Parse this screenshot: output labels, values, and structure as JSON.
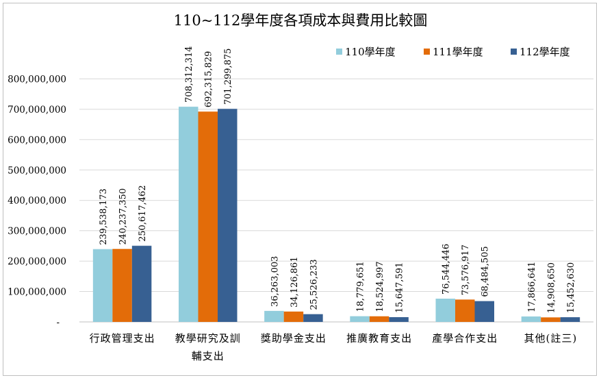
{
  "chart_data": {
    "type": "bar",
    "title": "110~112學年度各項成本與費用比較圖",
    "categories": [
      [
        "行政管理支出"
      ],
      [
        "教學研究及訓",
        "輔支出"
      ],
      [
        "獎助學金支出"
      ],
      [
        "推廣教育支出"
      ],
      [
        "產學合作支出"
      ],
      [
        "其他(註三)"
      ]
    ],
    "series": [
      {
        "name": "110學年度",
        "color": "#92CDDC",
        "values": [
          239538173,
          708312314,
          36263003,
          18779651,
          76544446,
          17866641
        ],
        "labels": [
          "239,538,173",
          "708,312,314",
          "36,263,003",
          "18,779,651",
          "76,544,446",
          "17,866,641"
        ]
      },
      {
        "name": "111學年度",
        "color": "#E36C09",
        "values": [
          240237350,
          692315829,
          34126861,
          18524997,
          73576917,
          14908650
        ],
        "labels": [
          "240,237,350",
          "692,315,829",
          "34,126,861",
          "18,524,997",
          "73,576,917",
          "14,908,650"
        ]
      },
      {
        "name": "112學年度",
        "color": "#376092",
        "values": [
          250617462,
          701299875,
          25526233,
          15647591,
          68484505,
          15452630
        ],
        "labels": [
          "250,617,462",
          "701,299,875",
          "25,526,233",
          "15,647,591",
          "68,484,505",
          "15,452,630"
        ]
      }
    ],
    "ylim": [
      0,
      900000000
    ],
    "yticks": [
      0,
      100000000,
      200000000,
      300000000,
      400000000,
      500000000,
      600000000,
      700000000,
      800000000
    ],
    "ytick_labels": [
      "-",
      "100,000,000",
      "200,000,000",
      "300,000,000",
      "400,000,000",
      "500,000,000",
      "600,000,000",
      "700,000,000",
      "800,000,000"
    ],
    "grid": true,
    "legend_position": "top-right",
    "xlabel": "",
    "ylabel": ""
  }
}
